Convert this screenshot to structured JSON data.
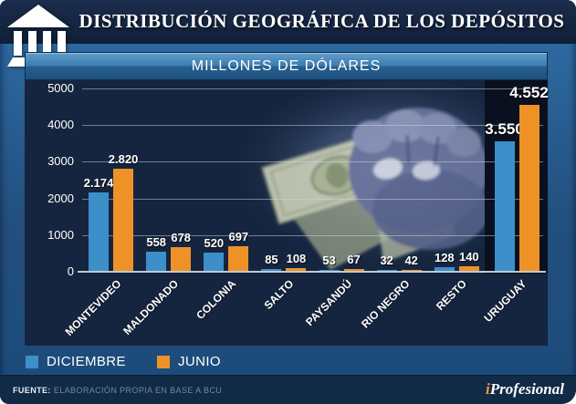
{
  "header": {
    "title": "DISTRIBUCIÓN GEOGRÁFICA DE LOS DEPÓSITOS",
    "icon": "bank-building-icon"
  },
  "chart_header": {
    "title": "MILLONES DE DÓLARES"
  },
  "chart_data": {
    "type": "bar",
    "title": "MILLONES DE DÓLARES",
    "categories": [
      "MONTEVIDEO",
      "MALDONADO",
      "COLONIA",
      "SALTO",
      "PAYSANDÚ",
      "RIO NEGRO",
      "RESTO",
      "URUGUAY"
    ],
    "series": [
      {
        "name": "DICIEMBRE",
        "color": "#3d8fca",
        "values": [
          2174,
          558,
          520,
          85,
          53,
          32,
          128,
          3550
        ],
        "labels": [
          "2.174",
          "558",
          "520",
          "85",
          "53",
          "32",
          "128",
          "3.550"
        ]
      },
      {
        "name": "JUNIO",
        "color": "#ee9227",
        "values": [
          2820,
          678,
          697,
          108,
          67,
          42,
          140,
          4552
        ],
        "labels": [
          "2.820",
          "678",
          "697",
          "108",
          "67",
          "42",
          "140",
          "4.552"
        ]
      }
    ],
    "ylim": [
      0,
      5000
    ],
    "yticks": [
      0,
      1000,
      2000,
      3000,
      4000,
      5000
    ],
    "grid": true,
    "legend_position": "bottom",
    "highlight_category": "URUGUAY",
    "background_image": "hand-holding-dollar-bills"
  },
  "legend": {
    "items": [
      {
        "label": "DICIEMBRE",
        "color": "#3d8fca"
      },
      {
        "label": "JUNIO",
        "color": "#ee9227"
      }
    ]
  },
  "footer": {
    "source_label": "FUENTE:",
    "source_text": "ELABORACIÓN PROPIA EN BASE A BCU",
    "brand_i": "i",
    "brand_rest": "Profesional"
  },
  "colors": {
    "series_diciembre": "#3d8fca",
    "series_junio": "#ee9227",
    "panel": "#15253f",
    "highlight_band": "#0a101f",
    "brand_accent": "#f29a2e"
  }
}
